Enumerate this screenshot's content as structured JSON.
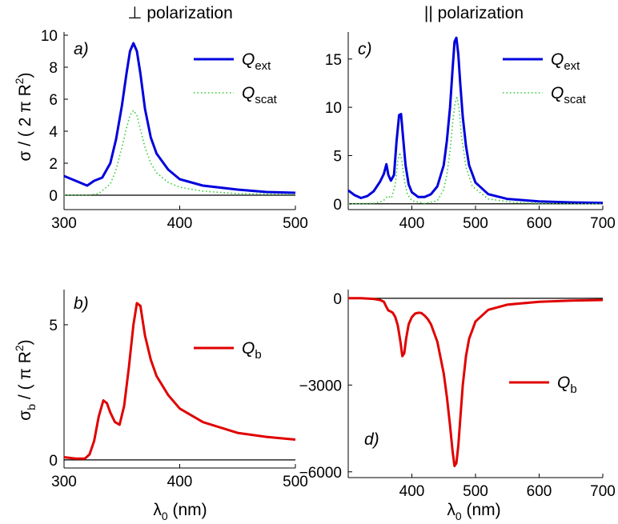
{
  "column_titles": {
    "left": "⊥ polarization",
    "right": "|| polarization"
  },
  "ylabels": {
    "top": {
      "main": "σ / ( 2 π R",
      "sup": "2",
      "tail": ")"
    },
    "bottom": {
      "main": "σ",
      "sub": "b",
      "mid": " / ( π R",
      "sup": "2",
      "tail": ")"
    }
  },
  "xlabel": {
    "main": "λ",
    "sub": "0",
    "tail": "  (nm)"
  },
  "colors": {
    "ext": "#0000dd",
    "scat": "#33cc33",
    "qb": "#e00000",
    "axis": "#000000"
  },
  "chart_data": [
    {
      "id": "a",
      "panel_label": "a)",
      "type": "line",
      "xlim": [
        300,
        500
      ],
      "ylim": [
        -0.9,
        10.2
      ],
      "xticks": [
        300,
        400,
        500
      ],
      "yticks": [
        0,
        2,
        4,
        6,
        8,
        10
      ],
      "zero_line": true,
      "legend_position": "top-right",
      "series": [
        {
          "name": "ext",
          "legend": {
            "main": "Q",
            "sub": "ext"
          },
          "style": "solid",
          "color": "#0000dd",
          "x": [
            300,
            310,
            320,
            326,
            333,
            340,
            345,
            350,
            354,
            357,
            360,
            363,
            366,
            370,
            375,
            380,
            390,
            400,
            420,
            450,
            475,
            500
          ],
          "y": [
            1.2,
            0.9,
            0.6,
            0.9,
            1.1,
            2.0,
            3.5,
            5.6,
            7.6,
            9.0,
            9.5,
            9.0,
            7.6,
            5.4,
            3.6,
            2.6,
            1.6,
            1.0,
            0.6,
            0.35,
            0.2,
            0.15
          ]
        },
        {
          "name": "scat",
          "legend": {
            "main": "Q",
            "sub": "scat"
          },
          "style": "dotted",
          "color": "#33cc33",
          "x": [
            300,
            320,
            330,
            340,
            345,
            350,
            354,
            357,
            360,
            363,
            366,
            370,
            375,
            380,
            390,
            400,
            420,
            450,
            500
          ],
          "y": [
            0.0,
            0.0,
            0.1,
            0.7,
            1.6,
            3.0,
            4.2,
            5.0,
            5.3,
            5.0,
            4.1,
            3.0,
            2.0,
            1.4,
            0.8,
            0.5,
            0.25,
            0.1,
            0.05
          ]
        }
      ]
    },
    {
      "id": "b",
      "panel_label": "b)",
      "type": "line",
      "xlim": [
        300,
        500
      ],
      "ylim": [
        -0.3,
        6.3
      ],
      "xticks": [
        300,
        400,
        500
      ],
      "yticks": [
        0,
        5
      ],
      "zero_line": true,
      "legend_position": "center-right",
      "series": [
        {
          "name": "b",
          "legend": {
            "main": "Q",
            "sub": "b"
          },
          "style": "solid",
          "color": "#e00000",
          "x": [
            300,
            310,
            318,
            322,
            326,
            330,
            334,
            337,
            340,
            344,
            348,
            352,
            356,
            360,
            363,
            366,
            370,
            375,
            380,
            390,
            400,
            420,
            450,
            475,
            500
          ],
          "y": [
            0.1,
            0.05,
            0.05,
            0.2,
            0.7,
            1.6,
            2.2,
            2.1,
            1.75,
            1.4,
            1.3,
            2.0,
            3.4,
            5.0,
            5.8,
            5.7,
            4.6,
            3.7,
            3.1,
            2.4,
            1.9,
            1.4,
            1.0,
            0.85,
            0.75
          ]
        }
      ]
    },
    {
      "id": "c",
      "panel_label": "c)",
      "type": "line",
      "xlim": [
        300,
        700
      ],
      "ylim": [
        -0.6,
        17.8
      ],
      "xticks": [
        400,
        500,
        600,
        700
      ],
      "yticks": [
        0,
        5,
        10,
        15
      ],
      "zero_line": true,
      "legend_position": "top-right",
      "series": [
        {
          "name": "ext",
          "legend": {
            "main": "Q",
            "sub": "ext"
          },
          "style": "solid",
          "color": "#0000dd",
          "x": [
            300,
            310,
            320,
            330,
            340,
            350,
            356,
            360,
            363,
            367,
            372,
            376,
            380,
            383,
            386,
            390,
            395,
            400,
            410,
            420,
            430,
            440,
            450,
            455,
            460,
            464,
            467,
            470,
            473,
            476,
            480,
            485,
            490,
            500,
            520,
            550,
            600,
            650,
            700
          ],
          "y": [
            1.4,
            0.9,
            0.6,
            0.8,
            1.3,
            2.3,
            3.1,
            4.1,
            3.0,
            2.4,
            3.0,
            6.5,
            9.2,
            9.3,
            7.0,
            4.0,
            2.0,
            1.2,
            0.7,
            0.7,
            1.0,
            1.8,
            4.0,
            6.5,
            10.0,
            14.0,
            16.8,
            17.2,
            15.5,
            12.5,
            9.0,
            6.0,
            4.0,
            2.2,
            1.0,
            0.5,
            0.25,
            0.15,
            0.1
          ]
        },
        {
          "name": "scat",
          "legend": {
            "main": "Q",
            "sub": "scat"
          },
          "style": "dotted",
          "color": "#33cc33",
          "x": [
            300,
            340,
            355,
            362,
            368,
            374,
            378,
            381,
            384,
            388,
            393,
            400,
            420,
            440,
            450,
            455,
            460,
            465,
            468,
            471,
            474,
            478,
            485,
            495,
            520,
            560,
            600,
            700
          ],
          "y": [
            0.0,
            0.05,
            0.3,
            0.8,
            0.6,
            2.0,
            4.5,
            5.3,
            4.6,
            2.5,
            1.0,
            0.3,
            0.05,
            0.3,
            1.5,
            3.0,
            5.5,
            9.0,
            10.5,
            11.0,
            10.0,
            7.0,
            3.8,
            1.8,
            0.5,
            0.15,
            0.05,
            0.0
          ]
        }
      ]
    },
    {
      "id": "d",
      "panel_label": "d)",
      "type": "line",
      "xlim": [
        300,
        700
      ],
      "ylim": [
        -6200,
        300
      ],
      "xticks": [
        400,
        500,
        600,
        700
      ],
      "yticks": [
        0,
        -3000,
        -6000
      ],
      "zero_line": true,
      "legend_position": "center-right",
      "series": [
        {
          "name": "b",
          "legend": {
            "main": "Q",
            "sub": "b"
          },
          "style": "solid",
          "color": "#e00000",
          "x": [
            300,
            320,
            340,
            350,
            356,
            360,
            363,
            366,
            370,
            374,
            378,
            382,
            385,
            388,
            391,
            395,
            400,
            405,
            410,
            415,
            420,
            425,
            430,
            440,
            450,
            455,
            460,
            464,
            467,
            470,
            473,
            476,
            480,
            485,
            490,
            500,
            520,
            550,
            600,
            650,
            700
          ],
          "y": [
            0,
            0,
            -20,
            -60,
            -120,
            -300,
            -420,
            -450,
            -500,
            -650,
            -950,
            -1500,
            -2000,
            -1900,
            -1400,
            -900,
            -650,
            -530,
            -500,
            -510,
            -600,
            -720,
            -900,
            -1500,
            -2600,
            -3400,
            -4400,
            -5300,
            -5800,
            -5700,
            -5100,
            -4200,
            -3000,
            -2000,
            -1400,
            -800,
            -400,
            -220,
            -120,
            -80,
            -60
          ]
        }
      ]
    }
  ]
}
